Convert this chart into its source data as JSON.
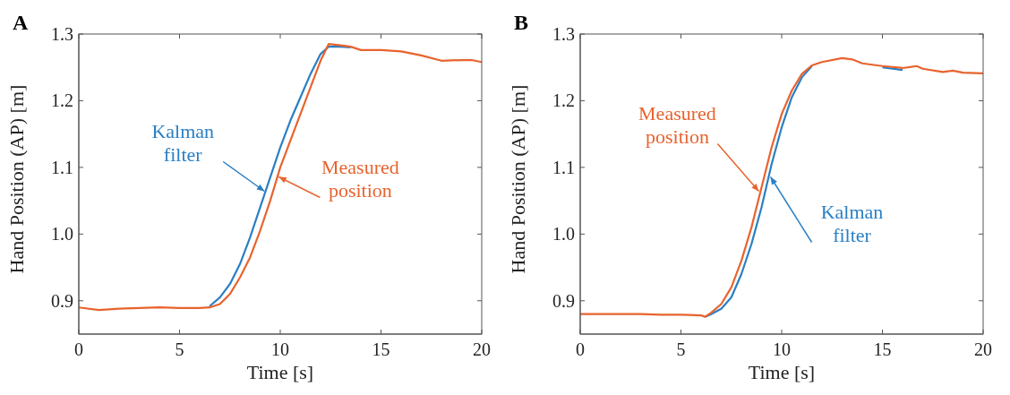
{
  "chart_data": [
    {
      "type": "line",
      "title": "A",
      "xlabel": "Time [s]",
      "ylabel": "Hand Position (AP) [m]",
      "x": [
        0,
        1,
        2,
        3,
        4,
        5,
        6,
        6.5,
        7,
        7.5,
        8,
        8.5,
        9,
        9.5,
        10,
        10.5,
        11,
        11.5,
        12,
        12.4,
        13,
        13.5,
        14,
        15,
        16,
        17,
        18,
        19,
        19.5,
        20
      ],
      "series": [
        {
          "name": "Kalman filter",
          "color": "#2a7fc4",
          "values": [
            null,
            null,
            null,
            null,
            null,
            null,
            null,
            0.892,
            0.905,
            0.925,
            0.955,
            0.995,
            1.04,
            1.085,
            1.13,
            1.17,
            1.205,
            1.24,
            1.27,
            1.281,
            1.281,
            1.28,
            null,
            null,
            null,
            null,
            null,
            null,
            null,
            null
          ]
        },
        {
          "name": "Measured position",
          "color": "#e8632e",
          "values": [
            0.89,
            0.886,
            0.888,
            0.889,
            0.89,
            0.889,
            0.889,
            0.89,
            0.895,
            0.91,
            0.935,
            0.965,
            1.005,
            1.05,
            1.1,
            1.14,
            1.18,
            1.22,
            1.26,
            1.285,
            1.283,
            1.281,
            1.276,
            1.276,
            1.274,
            1.268,
            1.26,
            1.261,
            1.261,
            1.258
          ]
        }
      ],
      "xlim": [
        0,
        20
      ],
      "xticks": [
        0,
        5,
        10,
        15,
        20
      ],
      "ylim": [
        0.85,
        1.3
      ],
      "yticks": [
        0.9,
        {
          "value": 1.0,
          "label": "1.0"
        },
        1.1,
        1.2,
        1.3
      ],
      "marker": "none",
      "line_style": "solid"
    },
    {
      "type": "line",
      "title": "B",
      "xlabel": "Time [s]",
      "ylabel": "Hand Position (AP) [m]",
      "x": [
        0,
        1,
        2,
        3,
        4,
        5,
        6,
        6.2,
        6.5,
        7,
        7.5,
        8,
        8.5,
        9,
        9.5,
        10,
        10.5,
        11,
        11.5,
        12,
        13,
        13.5,
        14,
        15,
        16,
        16.7,
        17,
        18,
        18.5,
        19,
        20
      ],
      "series": [
        {
          "name": "Kalman filter",
          "color": "#2a7fc4",
          "values": [
            null,
            null,
            null,
            null,
            null,
            null,
            null,
            0.876,
            0.88,
            0.888,
            0.905,
            0.94,
            0.985,
            1.04,
            1.105,
            1.16,
            1.205,
            1.235,
            1.252,
            null,
            null,
            null,
            null,
            1.25,
            1.246,
            null,
            null,
            null,
            null,
            null,
            null
          ]
        },
        {
          "name": "Measured position",
          "color": "#e8632e",
          "values": [
            0.88,
            0.88,
            0.88,
            0.88,
            0.879,
            0.879,
            0.878,
            0.876,
            0.882,
            0.895,
            0.92,
            0.96,
            1.01,
            1.07,
            1.13,
            1.18,
            1.215,
            1.24,
            1.253,
            1.258,
            1.264,
            1.262,
            1.256,
            1.252,
            1.249,
            1.252,
            1.248,
            1.243,
            1.245,
            1.242,
            1.241
          ]
        }
      ],
      "xlim": [
        0,
        20
      ],
      "xticks": [
        0,
        5,
        10,
        15,
        20
      ],
      "ylim": [
        0.85,
        1.3
      ],
      "yticks": [
        0.9,
        {
          "value": 1.0,
          "label": "1.0"
        },
        1.1,
        1.2,
        1.3
      ],
      "marker": "none",
      "line_style": "solid"
    }
  ]
}
